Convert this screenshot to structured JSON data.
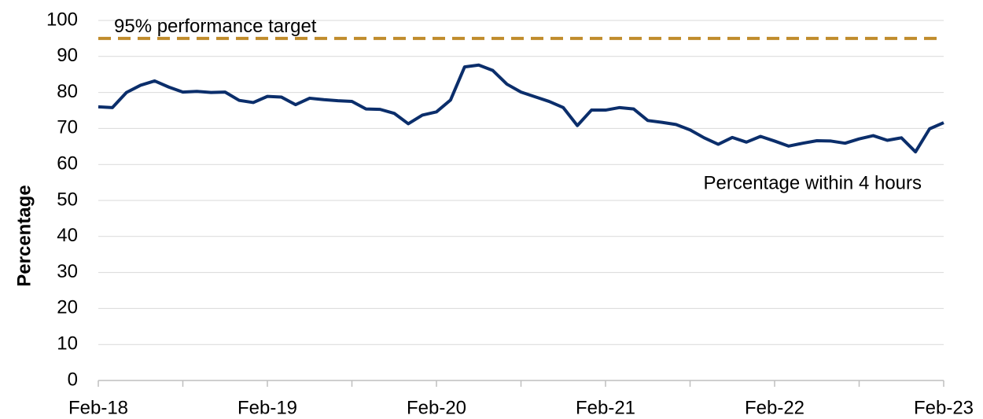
{
  "chart_data": {
    "type": "line",
    "y_label": "Percentage",
    "categories": [
      "Feb-18",
      null,
      null,
      null,
      null,
      null,
      null,
      null,
      null,
      null,
      null,
      null,
      "Feb-19",
      null,
      null,
      null,
      null,
      null,
      null,
      null,
      null,
      null,
      null,
      null,
      "Feb-20",
      null,
      null,
      null,
      null,
      null,
      null,
      null,
      null,
      null,
      null,
      null,
      "Feb-21",
      null,
      null,
      null,
      null,
      null,
      null,
      null,
      null,
      null,
      null,
      null,
      "Feb-22",
      null,
      null,
      null,
      null,
      null,
      null,
      null,
      null,
      null,
      null,
      null,
      "Feb-23"
    ],
    "series": [
      {
        "name": "Percentage within 4 hours",
        "color": "#0b2e6b",
        "values": [
          76,
          75.8,
          80,
          82,
          83.2,
          81.5,
          80.1,
          80.3,
          80,
          80.1,
          77.8,
          77.2,
          78.9,
          78.7,
          76.6,
          78.4,
          78,
          77.7,
          77.5,
          75.4,
          75.3,
          74.2,
          71.3,
          73.7,
          74.6,
          77.9,
          87.1,
          87.6,
          86.1,
          82.3,
          80.1,
          78.8,
          77.5,
          75.8,
          70.8,
          75.1,
          75.1,
          75.8,
          75.4,
          72.2,
          71.7,
          71.1,
          69.6,
          67.4,
          65.6,
          67.5,
          66.2,
          67.8,
          66.5,
          65.1,
          65.9,
          66.6,
          66.5,
          65.9,
          67.1,
          68,
          66.7,
          67.4,
          63.5,
          69.9,
          71.6
        ]
      }
    ],
    "target": {
      "value": 95,
      "label": "95% performance target",
      "color": "#c08c2c"
    },
    "ylim": [
      0,
      100
    ],
    "yticks": [
      0,
      10,
      20,
      30,
      40,
      50,
      60,
      70,
      80,
      90,
      100
    ],
    "grid": true
  }
}
